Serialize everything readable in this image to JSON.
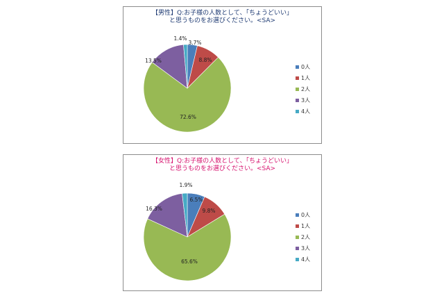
{
  "colors": {
    "0人": "#4a7ebb",
    "1人": "#be4b48",
    "2人": "#98b954",
    "3人": "#7d5fa0",
    "4人": "#46aac5"
  },
  "chart_data": [
    {
      "type": "pie",
      "title_lines": [
        "【男性】Q:お子様の人数として、「ちょうどいい」",
        "と思うものをお選びください。<SA>"
      ],
      "categories": [
        "0人",
        "1人",
        "2人",
        "3人",
        "4人"
      ],
      "values": [
        3.7,
        8.8,
        72.6,
        13.5,
        1.4
      ],
      "labels": [
        "3.7%",
        "8.8%",
        "72.6%",
        "13.5%",
        "1.4%"
      ],
      "legend_position": "right"
    },
    {
      "type": "pie",
      "title_lines": [
        "【女性】Q:お子様の人数として、「ちょうどいい」",
        "と思うものをお選びください。<SA>"
      ],
      "categories": [
        "0人",
        "1人",
        "2人",
        "3人",
        "4人"
      ],
      "values": [
        6.5,
        9.8,
        65.6,
        16.3,
        1.9
      ],
      "labels": [
        "6.5%",
        "9.8%",
        "65.6%",
        "16.3%",
        "1.9%"
      ],
      "legend_position": "right"
    }
  ]
}
